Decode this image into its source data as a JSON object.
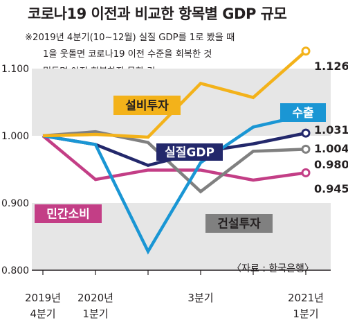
{
  "title": "코로나19 이전과 비교한 항목별 GDP 규모",
  "notes": [
    "※2019년 4분기(10~12월) 실질 GDP를 1로 봤을 때",
    "1을 웃돌면 코로나19 이전 수준을 회복한 것",
    "밑돌면 아직 회복하지 못한 것"
  ],
  "source": "〈자료 : 한국은행〉",
  "chart_data": {
    "type": "line",
    "x": [
      "2019Q4",
      "2020Q1",
      "2020Q2",
      "2020Q3",
      "2020Q4",
      "2021Q1"
    ],
    "x_tick_labels": [
      [
        "2019년",
        "4분기"
      ],
      [
        "2020년",
        "1분기"
      ],
      [
        "",
        ""
      ],
      [
        "3분기",
        ""
      ],
      [
        "",
        ""
      ],
      [
        "2021년",
        "1분기"
      ]
    ],
    "y_ticks": [
      "0.800",
      "0.900",
      "1.000",
      "1.100"
    ],
    "ylim": [
      0.8,
      1.15
    ],
    "series": [
      {
        "name": "설비투자",
        "color": "#f3b21a",
        "values": [
          1.0,
          1.002,
          0.998,
          1.078,
          1.057,
          1.126
        ],
        "end_label": "1.126"
      },
      {
        "name": "수출",
        "color": "#1a96d4",
        "values": [
          1.0,
          0.987,
          0.828,
          0.96,
          1.013,
          1.031
        ],
        "end_label": "1.031"
      },
      {
        "name": "실질GDP",
        "color": "#23286b",
        "values": [
          1.0,
          0.987,
          0.956,
          0.976,
          0.988,
          1.004
        ],
        "end_label": "1.004"
      },
      {
        "name": "건설투자",
        "color": "#808080",
        "values": [
          1.0,
          1.006,
          0.99,
          0.917,
          0.977,
          0.98
        ],
        "end_label": "0.980"
      },
      {
        "name": "민간소비",
        "color": "#c33e86",
        "values": [
          1.0,
          0.935,
          0.949,
          0.949,
          0.934,
          0.945
        ],
        "end_label": "0.945"
      }
    ]
  }
}
